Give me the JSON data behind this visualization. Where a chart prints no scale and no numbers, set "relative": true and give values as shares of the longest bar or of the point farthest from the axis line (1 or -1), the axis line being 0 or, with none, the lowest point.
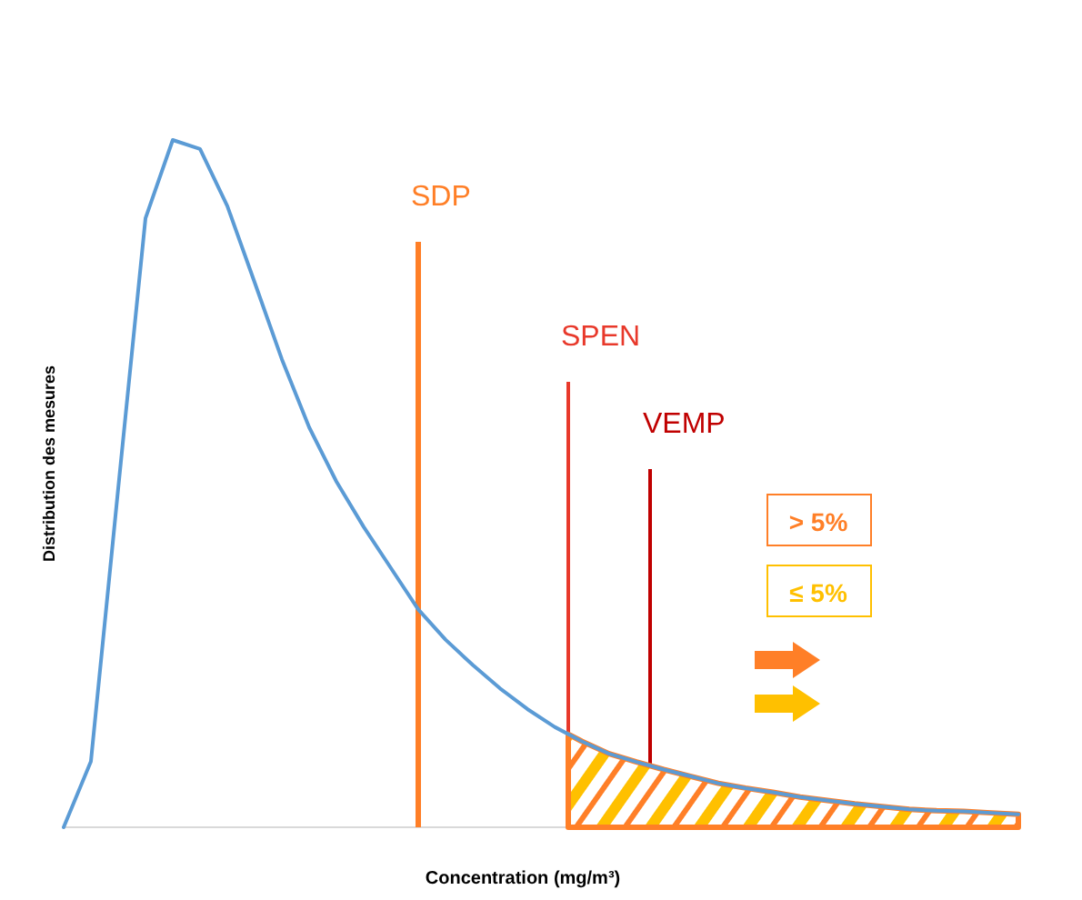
{
  "chart_data": {
    "type": "line",
    "relative": true,
    "xlabel": "Concentration (mg/m³)",
    "ylabel": "Distribution des mesures",
    "categories": [
      null,
      null,
      null,
      null,
      null,
      null,
      null,
      null,
      null,
      null,
      null,
      null,
      null,
      null,
      null,
      null,
      null,
      null,
      null,
      null,
      null,
      null,
      null,
      null,
      null,
      null,
      null,
      null,
      null,
      null,
      null,
      null,
      null,
      null,
      null,
      null
    ],
    "series": [
      {
        "color": "#5b9bd5",
        "values": [
          0,
          0.096,
          0.493,
          0.886,
          1,
          0.987,
          0.904,
          0.793,
          0.681,
          0.582,
          0.503,
          0.437,
          0.377,
          0.317,
          0.273,
          0.236,
          0.202,
          0.172,
          0.146,
          0.125,
          0.107,
          0.095,
          0.084,
          0.074,
          0.064,
          0.057,
          0.051,
          0.044,
          0.039,
          0.034,
          0.03,
          0.026,
          0.024,
          0.023,
          0.021,
          0.019
        ]
      }
    ],
    "annotations": [
      "SDP",
      "SPEN",
      "VEMP",
      "> 5%",
      "≤ 5%"
    ]
  }
}
